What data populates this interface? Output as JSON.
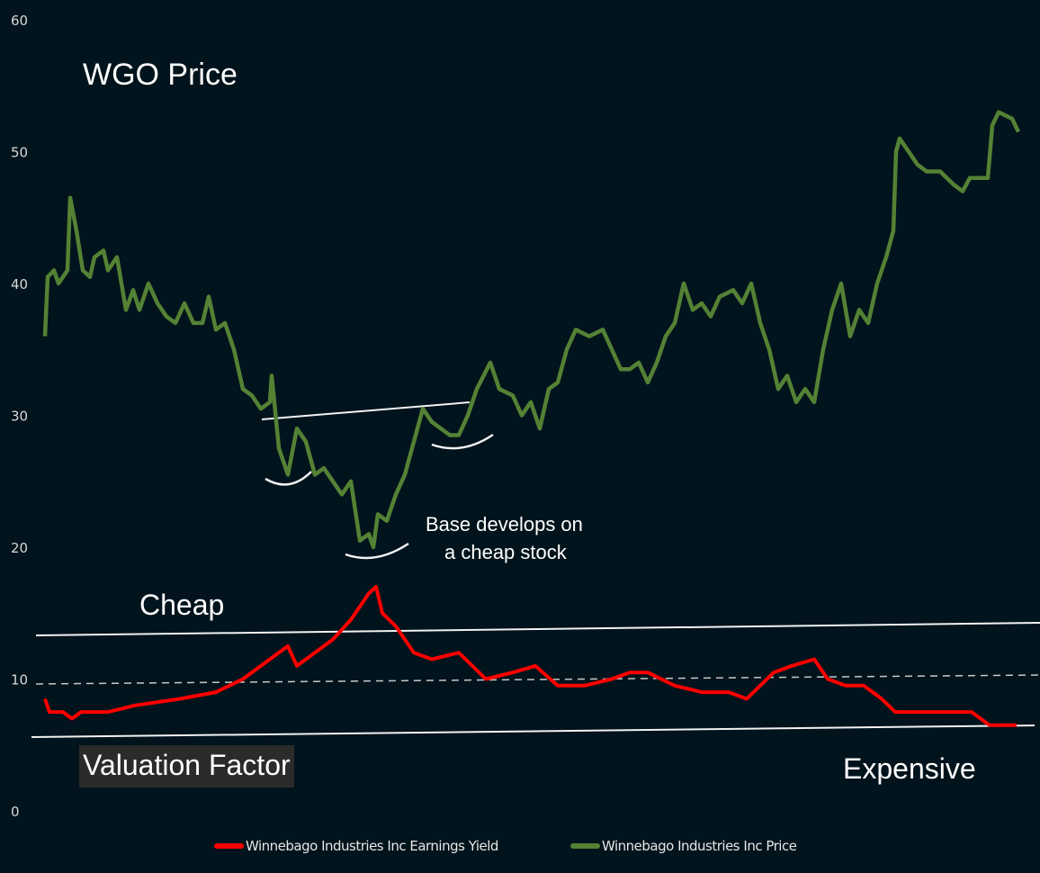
{
  "chart_data": {
    "type": "line",
    "title": "WGO Price",
    "xlabel": "",
    "ylabel": "",
    "ylim": [
      0,
      60
    ],
    "yticks": [
      "0",
      "10",
      "20",
      "30",
      "40",
      "50",
      "60"
    ],
    "grid": false,
    "legend_placement": "bottom",
    "series": [
      {
        "name": "Winnebago Industries Inc Earnings Yield",
        "color": "#ff0000",
        "points": [
          [
            0,
            8.5
          ],
          [
            1,
            7.5
          ],
          [
            4,
            7.5
          ],
          [
            6,
            7
          ],
          [
            8,
            7.5
          ],
          [
            14,
            7.5
          ],
          [
            20,
            8
          ],
          [
            30,
            8.5
          ],
          [
            38,
            9
          ],
          [
            44,
            10
          ],
          [
            50,
            11.5
          ],
          [
            54,
            12.5
          ],
          [
            56,
            11
          ],
          [
            60,
            12
          ],
          [
            64,
            13
          ],
          [
            68,
            14.5
          ],
          [
            72,
            16.5
          ],
          [
            73.6,
            17
          ],
          [
            75,
            15
          ],
          [
            78,
            14
          ],
          [
            82,
            12
          ],
          [
            86,
            11.5
          ],
          [
            92,
            12
          ],
          [
            98,
            10
          ],
          [
            104,
            10.5
          ],
          [
            109,
            11
          ],
          [
            114,
            9.5
          ],
          [
            120,
            9.5
          ],
          [
            126,
            10
          ],
          [
            130,
            10.5
          ],
          [
            134,
            10.5
          ],
          [
            140,
            9.5
          ],
          [
            146,
            9
          ],
          [
            152,
            9
          ],
          [
            156,
            8.5
          ],
          [
            162,
            10.5
          ],
          [
            166,
            11
          ],
          [
            171,
            11.5
          ],
          [
            174,
            10
          ],
          [
            178,
            9.5
          ],
          [
            182,
            9.5
          ],
          [
            186,
            8.5
          ],
          [
            189,
            7.5
          ],
          [
            198,
            7.5
          ],
          [
            206,
            7.5
          ],
          [
            210,
            6.5
          ],
          [
            216,
            6.5
          ]
        ]
      },
      {
        "name": "Winnebago Industries Inc Price",
        "color": "#548235",
        "points": [
          [
            0,
            36
          ],
          [
            0.6,
            40.5
          ],
          [
            2,
            41
          ],
          [
            3,
            40
          ],
          [
            5,
            41
          ],
          [
            5.6,
            46.5
          ],
          [
            7,
            44
          ],
          [
            8.4,
            41
          ],
          [
            10,
            40.5
          ],
          [
            11,
            42
          ],
          [
            13,
            42.5
          ],
          [
            14,
            41
          ],
          [
            16,
            42
          ],
          [
            17,
            40
          ],
          [
            18,
            38
          ],
          [
            19.6,
            39.5
          ],
          [
            21,
            38
          ],
          [
            23,
            40
          ],
          [
            25,
            38.5
          ],
          [
            27,
            37.5
          ],
          [
            29,
            37
          ],
          [
            31,
            38.5
          ],
          [
            33,
            37
          ],
          [
            35,
            37
          ],
          [
            36.4,
            39
          ],
          [
            38,
            36.5
          ],
          [
            40,
            37
          ],
          [
            42,
            35
          ],
          [
            44,
            32
          ],
          [
            46,
            31.5
          ],
          [
            48,
            30.5
          ],
          [
            50,
            31
          ],
          [
            50.4,
            33
          ],
          [
            52,
            27.5
          ],
          [
            54,
            25.5
          ],
          [
            56,
            29
          ],
          [
            58,
            28
          ],
          [
            60,
            25.5
          ],
          [
            62,
            26
          ],
          [
            64,
            25
          ],
          [
            66,
            24
          ],
          [
            68,
            25
          ],
          [
            70,
            20.5
          ],
          [
            72,
            21
          ],
          [
            73,
            20
          ],
          [
            74,
            22.5
          ],
          [
            76,
            22
          ],
          [
            78,
            24
          ],
          [
            80,
            25.5
          ],
          [
            82,
            28
          ],
          [
            84,
            30.5
          ],
          [
            86,
            29.5
          ],
          [
            88,
            29
          ],
          [
            90,
            28.5
          ],
          [
            92,
            28.5
          ],
          [
            94,
            30
          ],
          [
            96,
            32
          ],
          [
            99,
            34
          ],
          [
            101,
            32
          ],
          [
            104,
            31.5
          ],
          [
            106,
            30
          ],
          [
            108,
            31
          ],
          [
            110,
            29
          ],
          [
            112,
            32
          ],
          [
            114,
            32.5
          ],
          [
            116,
            35
          ],
          [
            118,
            36.5
          ],
          [
            121,
            36
          ],
          [
            124,
            36.5
          ],
          [
            126,
            35
          ],
          [
            128,
            33.5
          ],
          [
            130,
            33.5
          ],
          [
            132,
            34
          ],
          [
            134,
            32.5
          ],
          [
            136,
            34
          ],
          [
            138,
            36
          ],
          [
            140,
            37
          ],
          [
            142,
            40
          ],
          [
            144,
            38
          ],
          [
            146,
            38.5
          ],
          [
            148,
            37.5
          ],
          [
            150,
            39
          ],
          [
            153,
            39.5
          ],
          [
            155,
            38.5
          ],
          [
            157,
            40
          ],
          [
            159,
            37
          ],
          [
            161,
            35
          ],
          [
            163,
            32
          ],
          [
            165,
            33
          ],
          [
            167,
            31
          ],
          [
            169,
            32
          ],
          [
            171,
            31
          ],
          [
            173,
            35
          ],
          [
            175,
            38
          ],
          [
            177,
            40
          ],
          [
            179,
            36
          ],
          [
            181,
            38
          ],
          [
            183,
            37
          ],
          [
            185,
            40
          ],
          [
            187,
            42
          ],
          [
            188.6,
            44
          ],
          [
            189.2,
            50
          ],
          [
            190,
            51
          ],
          [
            192,
            50
          ],
          [
            194,
            49
          ],
          [
            196,
            48.5
          ],
          [
            199,
            48.5
          ],
          [
            202,
            47.5
          ],
          [
            204,
            47
          ],
          [
            205.6,
            48
          ],
          [
            208,
            48
          ],
          [
            209.6,
            48
          ],
          [
            210.6,
            52
          ],
          [
            212,
            53
          ],
          [
            215,
            52.5
          ],
          [
            216.4,
            51.5
          ]
        ]
      }
    ],
    "annotations": {
      "title": "WGO Price",
      "cheap": "Cheap",
      "valuation_factor": "Valuation Factor",
      "expensive": "Expensive",
      "base_line1": "Base develops on",
      "base_line2": "a cheap stock"
    },
    "reference_lines": {
      "cheap_level": [
        13.3,
        14.3
      ],
      "mid_level": [
        9.6,
        10.3
      ],
      "expensive_level": [
        5.6,
        6.5
      ],
      "neckline": [
        29.7,
        31
      ]
    }
  }
}
